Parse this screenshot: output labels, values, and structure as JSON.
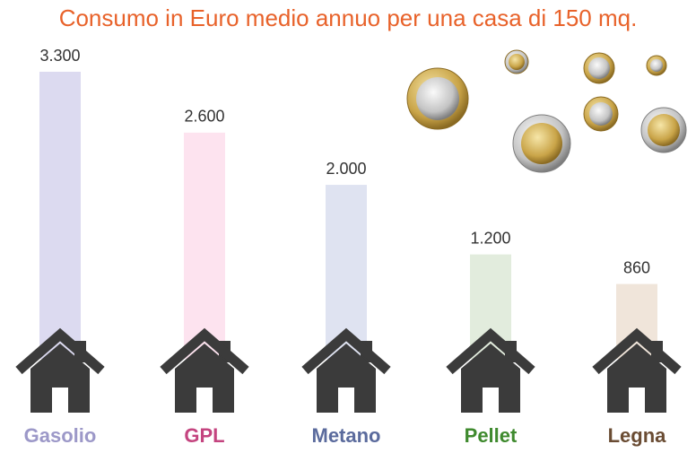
{
  "chart_data": {
    "type": "bar",
    "title": "Consumo in Euro medio annuo per una casa di 150 mq.",
    "categories": [
      "Gasolio",
      "GPL",
      "Metano",
      "Pellet",
      "Legna"
    ],
    "values": [
      3300,
      2600,
      2000,
      1200,
      860
    ],
    "value_labels": [
      "3.300",
      "2.600",
      "2.000",
      "1.200",
      "860"
    ],
    "colors": [
      "#dcdaf0",
      "#fde3ef",
      "#dfe3f1",
      "#e2ecdd",
      "#f0e5da"
    ],
    "category_colors": [
      "#9c98c8",
      "#c4447f",
      "#5b6b9d",
      "#3f8a2e",
      "#6a4c33"
    ]
  }
}
